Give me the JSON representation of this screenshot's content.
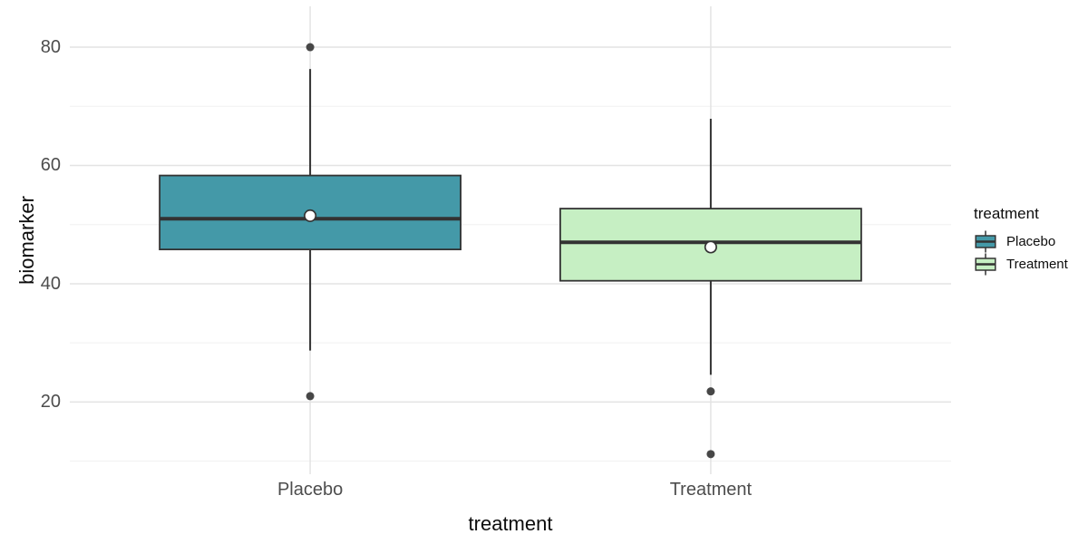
{
  "chart_data": {
    "type": "boxplot",
    "title": "",
    "xlabel": "treatment",
    "ylabel": "biomarker",
    "categories": [
      "Placebo",
      "Treatment"
    ],
    "y_axis": {
      "major_ticks": [
        20,
        40,
        60,
        80
      ],
      "minor_ticks": [
        10,
        30,
        50,
        70
      ],
      "ylim": [
        7.8,
        86.9
      ],
      "grid": true
    },
    "series": [
      {
        "name": "Placebo",
        "fill": "#4499A8",
        "whisker_low": 28.7,
        "q1": 45.8,
        "median": 51.0,
        "mean": 51.5,
        "q3": 58.3,
        "whisker_high": 76.3,
        "outliers": [
          80,
          21
        ]
      },
      {
        "name": "Treatment",
        "fill": "#C6EFC3",
        "whisker_low": 24.6,
        "q1": 40.5,
        "median": 47.0,
        "mean": 46.2,
        "q3": 52.7,
        "whisker_high": 67.9,
        "outliers": [
          21.8,
          11.2
        ]
      }
    ],
    "legend": {
      "title": "treatment",
      "position": "right"
    }
  },
  "colors": {
    "background": "#FFFFFF",
    "box_border": "#333333",
    "median_line": "#333333",
    "whisker": "#333333",
    "outlier": "#474747",
    "mean_fill": "#FFFFFF",
    "mean_stroke": "#333333",
    "grid_major": "#E3E3E3",
    "grid_minor": "#F0F0F0",
    "axis_text": "#4D4D4D",
    "title_text": "#0D0D0D"
  }
}
